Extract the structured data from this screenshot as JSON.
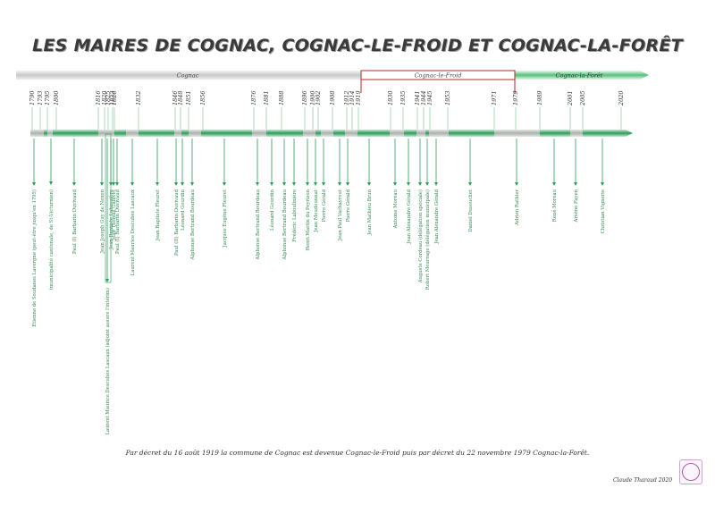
{
  "title": "LES MAIRES DE COGNAC, COGNAC-LE-FROID ET COGNAC-LA-FORÊT",
  "periods": [
    {
      "label": "Cognac",
      "from": 1790,
      "to": 1919,
      "color": "#9a9a9a"
    },
    {
      "label": "Cognac-le-Froid",
      "from": 1919,
      "to": 1979,
      "color": "#b02a2a"
    },
    {
      "label": "Cognac-la-Forêt",
      "from": 1979,
      "to": 2025,
      "color": "#3aa35a"
    }
  ],
  "years": [
    "1790",
    "1793",
    "1795",
    "1800",
    "1816",
    "1820",
    "1825",
    "1823",
    "1826",
    "1832",
    "1846",
    "1848",
    "1851",
    "1856",
    "1876",
    "1881",
    "1888",
    "1896",
    "1900",
    "1902",
    "1908",
    "1912",
    "1914",
    "1919",
    "1930",
    "1935",
    "1941",
    "1944",
    "1945",
    "1953",
    "1971",
    "1979",
    "1989",
    "2001",
    "2005",
    "2020"
  ],
  "mayors": [
    {
      "name": "Etienne de Soudanes Lavergne (peut-être jusqu'en 1795)"
    },
    {
      "name": "(municipalité cantonale, de St-Victurnien)"
    },
    {
      "name": "Paul (I) Barbarin Duvivaud"
    },
    {
      "name": "Jean Joseph Guy de Nexon"
    },
    {
      "name": "Laurent Maurice Descubes Lascaux (adjoint assure l'intérim)"
    },
    {
      "name": "Jean Baptiste Labussière"
    },
    {
      "name": "Jean Thomas Ganivet"
    },
    {
      "name": "Paul (I) Barbarin Duvivaud"
    },
    {
      "name": "Laurent Maurice Descubes Lascaux"
    },
    {
      "name": "Jean Baptiste Fleuret"
    },
    {
      "name": "Paul (II) Barbarin Duvivaud"
    },
    {
      "name": "Léonard Gourdin"
    },
    {
      "name": "Alphonse Bertrand Bourdeau"
    },
    {
      "name": "Jacques Eugène Fleuret"
    },
    {
      "name": "Alphonse Bertrand Bourdeau"
    },
    {
      "name": "Léonard Gourdin"
    },
    {
      "name": "Alphonse Bertrand Bourdeau"
    },
    {
      "name": "Frédéric Labouliniére"
    },
    {
      "name": "Henri Martin du Peyrison"
    },
    {
      "name": "Jean Moudounnat"
    },
    {
      "name": "Pierre Gérald"
    },
    {
      "name": "Jean Paul Vachayrout"
    },
    {
      "name": "Pierre Gérald"
    },
    {
      "name": "Jean Mathieu Brun"
    },
    {
      "name": "Antoine Moreau"
    },
    {
      "name": "Jean Alexandre Gérald"
    },
    {
      "name": "Auguste Cordeau (délégation spéciale)"
    },
    {
      "name": "Robert Mourrage (délégation municipale)"
    },
    {
      "name": "Jean Alexandre Gérald"
    },
    {
      "name": "Daniel Dusouchet"
    },
    {
      "name": "Adrien Rathier"
    },
    {
      "name": "René Moreau"
    },
    {
      "name": "Arsène Fayen"
    },
    {
      "name": "Christian Vignerie"
    }
  ],
  "footnote": "Par décret du 16 août 1919 la commune de Cognac est devenue Cognac-le-Froid puis par décret du 22 novembre 1979 Cognac-la-Forêt.",
  "author": "Claude Tharaud 2020",
  "colors": {
    "axis_green": "#2f9a5a",
    "frame_red": "#b02a2a",
    "title": "#3a3a3a"
  }
}
